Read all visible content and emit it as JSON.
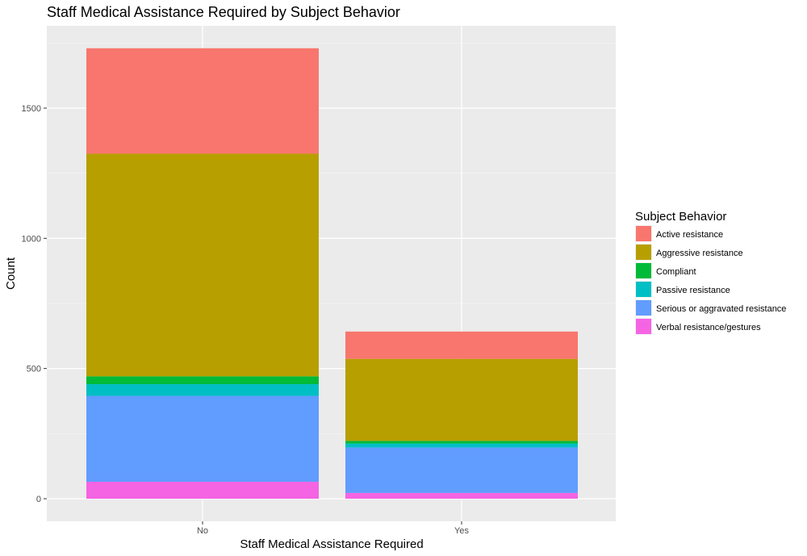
{
  "chart_data": {
    "type": "bar",
    "stacked": true,
    "title": "Staff Medical Assistance Required by Subject Behavior",
    "xlabel": "Staff Medical Assistance Required",
    "ylabel": "Count",
    "categories": [
      "No",
      "Yes"
    ],
    "ylim": [
      0,
      1800
    ],
    "yticks": [
      0,
      500,
      1000,
      1500
    ],
    "grid": true,
    "legend": {
      "title": "Subject Behavior",
      "position": "right"
    },
    "series": [
      {
        "name": "Active resistance",
        "color": "#F8766D",
        "values": [
          405,
          105
        ]
      },
      {
        "name": "Aggressive resistance",
        "color": "#B79F00",
        "values": [
          855,
          315
        ]
      },
      {
        "name": "Compliant",
        "color": "#00BA38",
        "values": [
          30,
          10
        ]
      },
      {
        "name": "Passive resistance",
        "color": "#00BFC4",
        "values": [
          45,
          15
        ]
      },
      {
        "name": "Serious or aggravated resistance",
        "color": "#619CFF",
        "values": [
          330,
          175
        ]
      },
      {
        "name": "Verbal resistance/gestures",
        "color": "#F564E3",
        "values": [
          65,
          22
        ]
      }
    ]
  }
}
